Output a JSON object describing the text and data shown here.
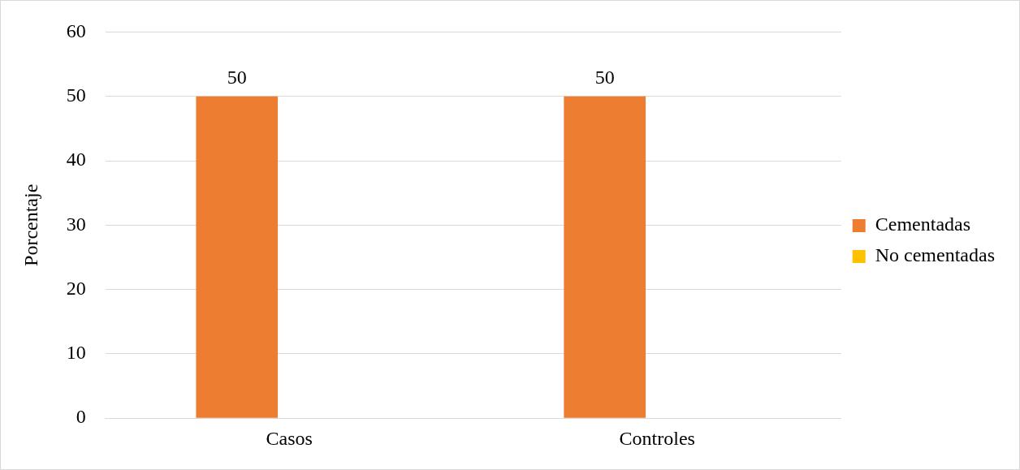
{
  "chart_data": {
    "type": "bar",
    "ylabel": "Porcentaje",
    "categories": [
      "Casos",
      "Controles"
    ],
    "series": [
      {
        "name": "Cementadas",
        "color": "#ed7d31",
        "values": [
          50,
          50
        ],
        "value_labels": [
          "50",
          "50"
        ]
      },
      {
        "name": "No cementadas",
        "color": "#ffc000",
        "values": [
          0,
          0
        ],
        "value_labels": [
          null,
          null
        ]
      }
    ],
    "ylim": [
      0,
      60
    ],
    "yticks": [
      0,
      10,
      20,
      30,
      40,
      50,
      60
    ],
    "grid": "y",
    "legend": "right"
  }
}
